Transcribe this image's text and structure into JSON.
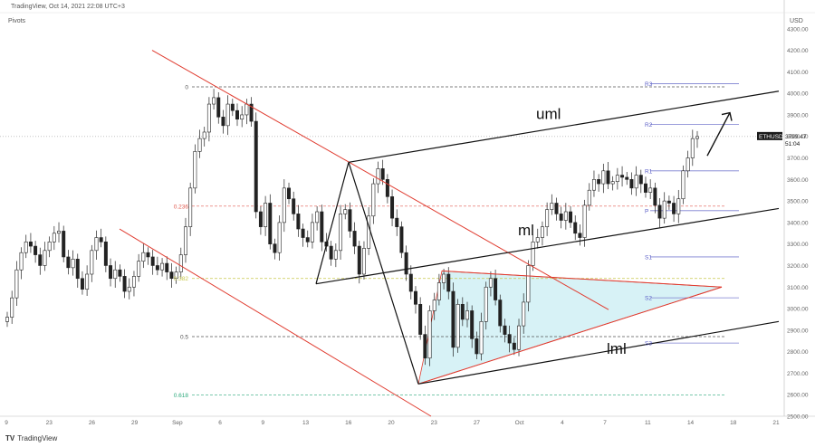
{
  "header": {
    "source": "TradingView, Oct 14, 2021 22:08 UTC+3"
  },
  "indicator_label": "Pivots",
  "footer": {
    "brand": "TradingView"
  },
  "colors": {
    "candle": "#222222",
    "channel": "#e03b2f",
    "triangle": "#c9eef3",
    "pivot": "#7b7fd0"
  },
  "chart_data": {
    "type": "candlestick",
    "currency": "USD",
    "ylim": [
      2500,
      4400
    ],
    "y_ticks": [
      2500,
      2600,
      2700,
      2800,
      2900,
      3000,
      3100,
      3200,
      3300,
      3400,
      3500,
      3600,
      3700,
      3800,
      3900,
      4000,
      4100,
      4200,
      4300
    ],
    "x_ticks": [
      "9",
      "23",
      "26",
      "29",
      "Sep",
      "6",
      "9",
      "13",
      "16",
      "20",
      "23",
      "27",
      "Oct",
      "4",
      "7",
      "11",
      "14",
      "18",
      "21"
    ],
    "price": {
      "symbol": "ETHUSD",
      "last": "3799.47",
      "countdown": "51:04",
      "value": 3799.47
    },
    "fib_levels": [
      {
        "label": "0",
        "value": 4030,
        "color": "#555555"
      },
      {
        "label": "0.236",
        "value": 3476,
        "color": "#e05a4f"
      },
      {
        "label": "0.382",
        "value": 3140,
        "color": "#c8c84a"
      },
      {
        "label": "0.5",
        "value": 2870,
        "color": "#555555"
      },
      {
        "label": "0.618",
        "value": 2598,
        "color": "#2aa87a"
      }
    ],
    "pivot_levels": [
      {
        "label": "R3",
        "value": 4045
      },
      {
        "label": "R2",
        "value": 3855
      },
      {
        "label": "R1",
        "value": 3640
      },
      {
        "label": "P",
        "value": 3455
      },
      {
        "label": "S1",
        "value": 3240
      },
      {
        "label": "S2",
        "value": 3050
      },
      {
        "label": "S3",
        "value": 2840
      }
    ],
    "annotations": [
      "uml",
      "ml",
      "lml"
    ],
    "close_series": [
      2960,
      3050,
      3180,
      3260,
      3310,
      3290,
      3250,
      3200,
      3270,
      3310,
      3350,
      3360,
      3240,
      3190,
      3230,
      3140,
      3090,
      3160,
      3270,
      3330,
      3310,
      3200,
      3140,
      3180,
      3150,
      3080,
      3100,
      3150,
      3220,
      3260,
      3240,
      3200,
      3180,
      3210,
      3170,
      3140,
      3170,
      3250,
      3380,
      3560,
      3730,
      3790,
      3820,
      3950,
      3980,
      3890,
      3850,
      3950,
      3920,
      3880,
      3900,
      3950,
      3870,
      3450,
      3380,
      3490,
      3300,
      3260,
      3400,
      3560,
      3510,
      3440,
      3370,
      3330,
      3310,
      3400,
      3450,
      3310,
      3290,
      3230,
      3270,
      3440,
      3460,
      3360,
      3290,
      3160,
      3280,
      3430,
      3580,
      3650,
      3600,
      3520,
      3420,
      3380,
      3260,
      3160,
      3080,
      3020,
      2880,
      2770,
      2990,
      3040,
      3120,
      3160,
      3080,
      2820,
      3020,
      2950,
      2990,
      2860,
      2790,
      2940,
      3100,
      3140,
      3040,
      2920,
      2880,
      2840,
      2810,
      2920,
      3030,
      3200,
      3310,
      3330,
      3380,
      3460,
      3490,
      3440,
      3410,
      3450,
      3400,
      3350,
      3330,
      3480,
      3550,
      3600,
      3580,
      3640,
      3580,
      3590,
      3620,
      3610,
      3600,
      3560,
      3620,
      3580,
      3540,
      3560,
      3480,
      3420,
      3500,
      3490,
      3440,
      3510,
      3640,
      3700,
      3790,
      3799.47
    ]
  }
}
